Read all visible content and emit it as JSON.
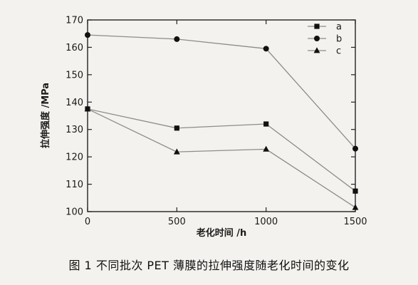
{
  "chart_data": {
    "type": "line",
    "x": [
      0,
      500,
      1000,
      1500
    ],
    "xlim": [
      0,
      1500
    ],
    "ylim": [
      100,
      170
    ],
    "xticks": [
      "0",
      "500",
      "1000",
      "1500"
    ],
    "yticks": [
      "100",
      "110",
      "120",
      "130",
      "140",
      "150",
      "160",
      "170"
    ],
    "xlabel": "老化时间 /h",
    "ylabel": "拉伸强度 /MPa",
    "grid": false,
    "legend_position": "top-right",
    "series": [
      {
        "name": "a",
        "marker": "square",
        "values": [
          137.5,
          130.5,
          132.0,
          107.5
        ]
      },
      {
        "name": "b",
        "marker": "circle",
        "values": [
          164.5,
          163.0,
          159.5,
          123.0
        ]
      },
      {
        "name": "c",
        "marker": "triangle",
        "values": [
          137.5,
          121.8,
          122.8,
          101.5
        ]
      }
    ],
    "line_color": "#8c8c8c",
    "marker_color": "#111111"
  },
  "caption": "图 1  不同批次 PET 薄膜的拉伸强度随老化时间的变化"
}
